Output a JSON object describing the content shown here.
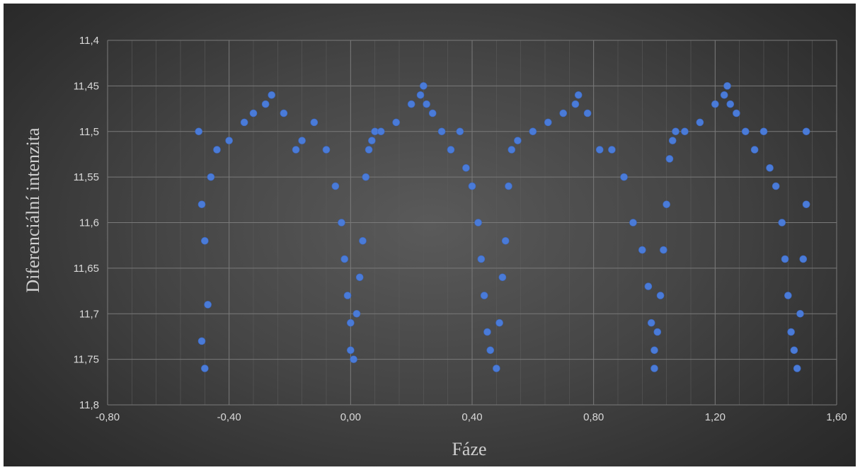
{
  "chart_data": {
    "type": "scatter",
    "title": "",
    "xlabel": "Fáze",
    "ylabel": "Diferenciální intenzita",
    "xlim": [
      -0.8,
      1.6
    ],
    "ylim": [
      11.4,
      11.8
    ],
    "y_reversed": true,
    "x_ticks": [
      "-0,80",
      "-0,40",
      "0,00",
      "0,40",
      "0,80",
      "1,20",
      "1,60"
    ],
    "y_ticks": [
      "11,4",
      "11,45",
      "11,5",
      "11,55",
      "11,6",
      "11,65",
      "11,7",
      "11,75",
      "11,8"
    ],
    "x_tick_values": [
      -0.8,
      -0.4,
      0.0,
      0.4,
      0.8,
      1.2,
      1.6
    ],
    "y_tick_values": [
      11.4,
      11.45,
      11.5,
      11.55,
      11.6,
      11.65,
      11.7,
      11.75,
      11.8
    ],
    "grid": true,
    "legend": "none",
    "marker_color": "#4a7bd8",
    "series": [
      {
        "x": [
          -0.5,
          -0.49,
          -0.49,
          -0.48,
          -0.48,
          -0.47,
          -0.46,
          -0.44,
          -0.4,
          -0.35,
          -0.32,
          -0.28,
          -0.26,
          -0.22,
          -0.18,
          -0.16,
          -0.12,
          -0.08,
          -0.05,
          -0.03,
          -0.02,
          -0.01,
          0.0,
          0.0,
          0.01,
          0.02,
          0.03,
          0.04,
          0.05,
          0.06,
          0.07,
          0.08,
          0.1,
          0.15,
          0.2,
          0.23,
          0.24,
          0.25,
          0.27,
          0.3,
          0.33,
          0.36,
          0.38,
          0.4,
          0.42,
          0.43,
          0.44,
          0.45,
          0.46,
          0.48,
          0.49,
          0.5,
          0.51,
          0.52,
          0.53,
          0.55,
          0.6,
          0.65,
          0.7,
          0.74,
          0.75,
          0.78,
          0.82,
          0.86,
          0.9,
          0.93,
          0.96,
          0.98,
          0.99,
          1.0,
          1.0,
          1.01,
          1.02,
          1.03,
          1.04,
          1.05,
          1.06,
          1.07,
          1.1,
          1.15,
          1.2,
          1.23,
          1.24,
          1.25,
          1.27,
          1.3,
          1.33,
          1.36,
          1.38,
          1.4,
          1.42,
          1.43,
          1.44,
          1.45,
          1.46,
          1.47,
          1.48,
          1.49,
          1.5,
          1.5
        ],
        "y": [
          11.5,
          11.58,
          11.73,
          11.62,
          11.76,
          11.69,
          11.55,
          11.52,
          11.51,
          11.49,
          11.48,
          11.47,
          11.46,
          11.48,
          11.52,
          11.51,
          11.49,
          11.52,
          11.56,
          11.6,
          11.64,
          11.68,
          11.71,
          11.74,
          11.75,
          11.7,
          11.66,
          11.62,
          11.55,
          11.52,
          11.51,
          11.5,
          11.5,
          11.49,
          11.47,
          11.46,
          11.45,
          11.47,
          11.48,
          11.5,
          11.52,
          11.5,
          11.54,
          11.56,
          11.6,
          11.64,
          11.68,
          11.72,
          11.74,
          11.76,
          11.71,
          11.66,
          11.62,
          11.56,
          11.52,
          11.51,
          11.5,
          11.49,
          11.48,
          11.47,
          11.46,
          11.48,
          11.52,
          11.52,
          11.55,
          11.6,
          11.63,
          11.67,
          11.71,
          11.74,
          11.76,
          11.72,
          11.68,
          11.63,
          11.58,
          11.53,
          11.51,
          11.5,
          11.5,
          11.49,
          11.47,
          11.46,
          11.45,
          11.47,
          11.48,
          11.5,
          11.52,
          11.5,
          11.54,
          11.56,
          11.6,
          11.64,
          11.68,
          11.72,
          11.74,
          11.76,
          11.7,
          11.64,
          11.58,
          11.5
        ]
      }
    ]
  }
}
